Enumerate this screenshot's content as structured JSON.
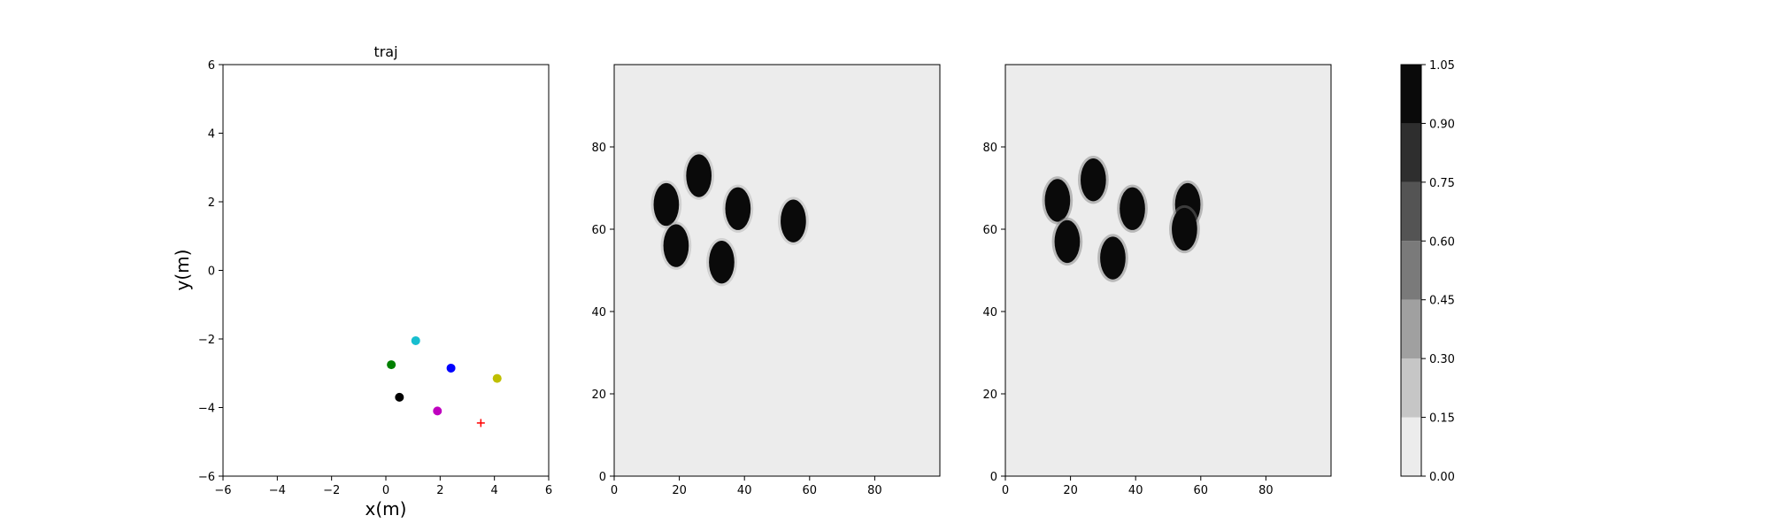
{
  "chart_data": [
    {
      "type": "scatter",
      "title": "traj",
      "xlabel": "x(m)",
      "ylabel": "y(m)",
      "xlim": [
        -6,
        6
      ],
      "ylim": [
        -6,
        6
      ],
      "xticks": [
        "−6",
        "−4",
        "−2",
        "0",
        "2",
        "4",
        "6"
      ],
      "yticks": [
        "−6",
        "−4",
        "−2",
        "0",
        "2",
        "4",
        "6"
      ],
      "grid": false,
      "points": [
        {
          "x": 1.1,
          "y": -2.05,
          "color": "#17becf",
          "marker": "circle"
        },
        {
          "x": 0.2,
          "y": -2.75,
          "color": "#008000",
          "marker": "circle"
        },
        {
          "x": 2.4,
          "y": -2.85,
          "color": "#0000ff",
          "marker": "circle"
        },
        {
          "x": 4.1,
          "y": -3.15,
          "color": "#bfbf00",
          "marker": "circle"
        },
        {
          "x": 0.5,
          "y": -3.7,
          "color": "#000000",
          "marker": "circle"
        },
        {
          "x": 1.9,
          "y": -4.1,
          "color": "#bf00bf",
          "marker": "circle"
        },
        {
          "x": 3.5,
          "y": -4.45,
          "color": "#ff0000",
          "marker": "plus"
        }
      ]
    },
    {
      "type": "heatmap",
      "xlim": [
        0,
        100
      ],
      "ylim": [
        0,
        100
      ],
      "xticks": [
        "0",
        "20",
        "40",
        "60",
        "80"
      ],
      "yticks": [
        "0",
        "20",
        "40",
        "60",
        "80"
      ],
      "background_level": 0.05,
      "blobs": [
        {
          "x": 16,
          "y": 66,
          "value": 1.0
        },
        {
          "x": 26,
          "y": 73,
          "value": 1.0
        },
        {
          "x": 38,
          "y": 65,
          "value": 1.0
        },
        {
          "x": 19,
          "y": 56,
          "value": 1.0
        },
        {
          "x": 33,
          "y": 52,
          "value": 1.0
        },
        {
          "x": 55,
          "y": 62,
          "value": 1.0
        }
      ]
    },
    {
      "type": "heatmap",
      "xlim": [
        0,
        100
      ],
      "ylim": [
        0,
        100
      ],
      "xticks": [
        "0",
        "20",
        "40",
        "60",
        "80"
      ],
      "yticks": [
        "0",
        "20",
        "40",
        "60",
        "80"
      ],
      "background_level": 0.05,
      "blobs": [
        {
          "x": 16,
          "y": 67,
          "value": 1.0
        },
        {
          "x": 27,
          "y": 72,
          "value": 1.0
        },
        {
          "x": 39,
          "y": 65,
          "value": 1.0
        },
        {
          "x": 19,
          "y": 57,
          "value": 1.0
        },
        {
          "x": 33,
          "y": 53,
          "value": 1.0
        },
        {
          "x": 56,
          "y": 66,
          "value": 1.0
        },
        {
          "x": 55,
          "y": 60,
          "value": 1.0
        }
      ]
    }
  ],
  "colorbar": {
    "levels": [
      "0.00",
      "0.15",
      "0.30",
      "0.45",
      "0.60",
      "0.75",
      "0.90",
      "1.05"
    ],
    "colors": [
      "#ececec",
      "#c6c6c6",
      "#a0a0a0",
      "#7a7a7a",
      "#545454",
      "#2e2e2e",
      "#0a0a0a"
    ]
  }
}
